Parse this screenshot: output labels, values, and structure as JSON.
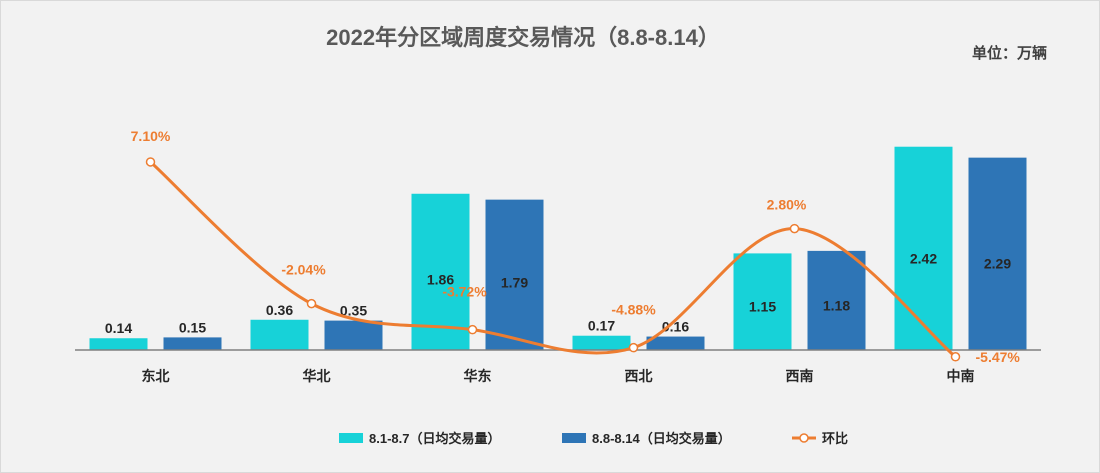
{
  "colors": {
    "series1": "#17d2d8",
    "series2": "#2e75b6",
    "line": "#ed7d31",
    "background": "#f2f2f2"
  },
  "chart_data": {
    "type": "bar",
    "title": "2022年分区域周度交易情况（8.8-8.14）",
    "unit_label": "单位：万辆",
    "categories": [
      "东北",
      "华北",
      "华东",
      "西北",
      "西南",
      "中南"
    ],
    "series": [
      {
        "name": "8.1-8.7（日均交易量）",
        "values": [
          0.14,
          0.36,
          1.86,
          0.17,
          1.15,
          2.42
        ],
        "labels": [
          "0.14",
          "0.36",
          "1.86",
          "0.17",
          "1.15",
          "2.42"
        ]
      },
      {
        "name": "8.8-8.14（日均交易量）",
        "values": [
          0.15,
          0.35,
          1.79,
          0.16,
          1.18,
          2.29
        ],
        "labels": [
          "0.15",
          "0.35",
          "1.79",
          "0.16",
          "1.18",
          "2.29"
        ]
      }
    ],
    "line_series": {
      "name": "环比",
      "values": [
        7.1,
        -2.04,
        -3.72,
        -4.88,
        2.8,
        -5.47
      ],
      "labels": [
        "7.10%",
        "-2.04%",
        "-3.72%",
        "-4.88%",
        "2.80%",
        "-5.47%"
      ]
    },
    "ylim": [
      0,
      2.75
    ],
    "line_ylim": [
      -8,
      12
    ],
    "legend_position": "bottom-center",
    "grid": false
  }
}
